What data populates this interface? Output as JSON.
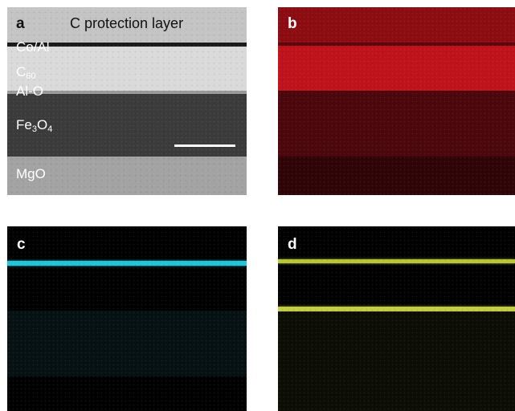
{
  "panels": {
    "a": {
      "letter": "a",
      "title": "C protection layer",
      "layers": [
        {
          "name": "Co/Al"
        },
        {
          "name": "C",
          "sub": "60"
        },
        {
          "name": "Al-O"
        },
        {
          "name": "Fe",
          "sub": "3",
          "name2": "O",
          "sub2": "4"
        },
        {
          "name": "MgO"
        }
      ]
    },
    "b": {
      "letter": "b",
      "color": "#c0121a"
    },
    "c": {
      "letter": "c",
      "color": "#22c4d8"
    },
    "d": {
      "letter": "d",
      "color": "#b8c43a"
    }
  }
}
